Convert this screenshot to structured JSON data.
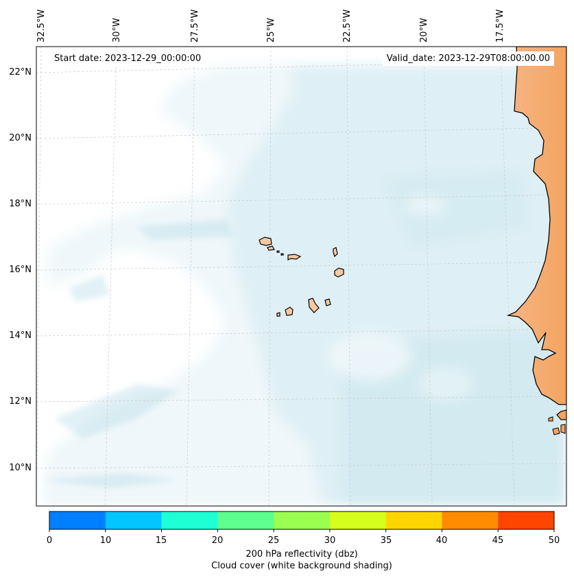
{
  "header": {
    "start_date": "Start date: 2023-12-29_00:00:00",
    "valid_date": "Valid_date: 2023-12-29T08:00:00.00"
  },
  "axes": {
    "lon_labels": [
      "32.5°W",
      "30°W",
      "27.5°W",
      "25°W",
      "22.5°W",
      "20°W",
      "17.5°W"
    ],
    "lat_labels": [
      "22°N",
      "20°N",
      "18°N",
      "16°N",
      "14°N",
      "12°N",
      "10°N"
    ]
  },
  "colorbar": {
    "ticks": [
      "0",
      "10",
      "15",
      "20",
      "25",
      "30",
      "35",
      "40",
      "45",
      "50"
    ],
    "colors": [
      "#0080ff",
      "#00c5ff",
      "#1fffd6",
      "#5eff8f",
      "#9aff51",
      "#d7ff1d",
      "#ffd500",
      "#ff8c00",
      "#ff4500"
    ],
    "label": "200 hPa reflectivity (dbz)",
    "sublabel": "Cloud cover (white background shading)"
  },
  "colors": {
    "cloud": "#add8e6",
    "land": "#f4a460",
    "islands": "#f8c8a0",
    "coast": "#000000"
  }
}
